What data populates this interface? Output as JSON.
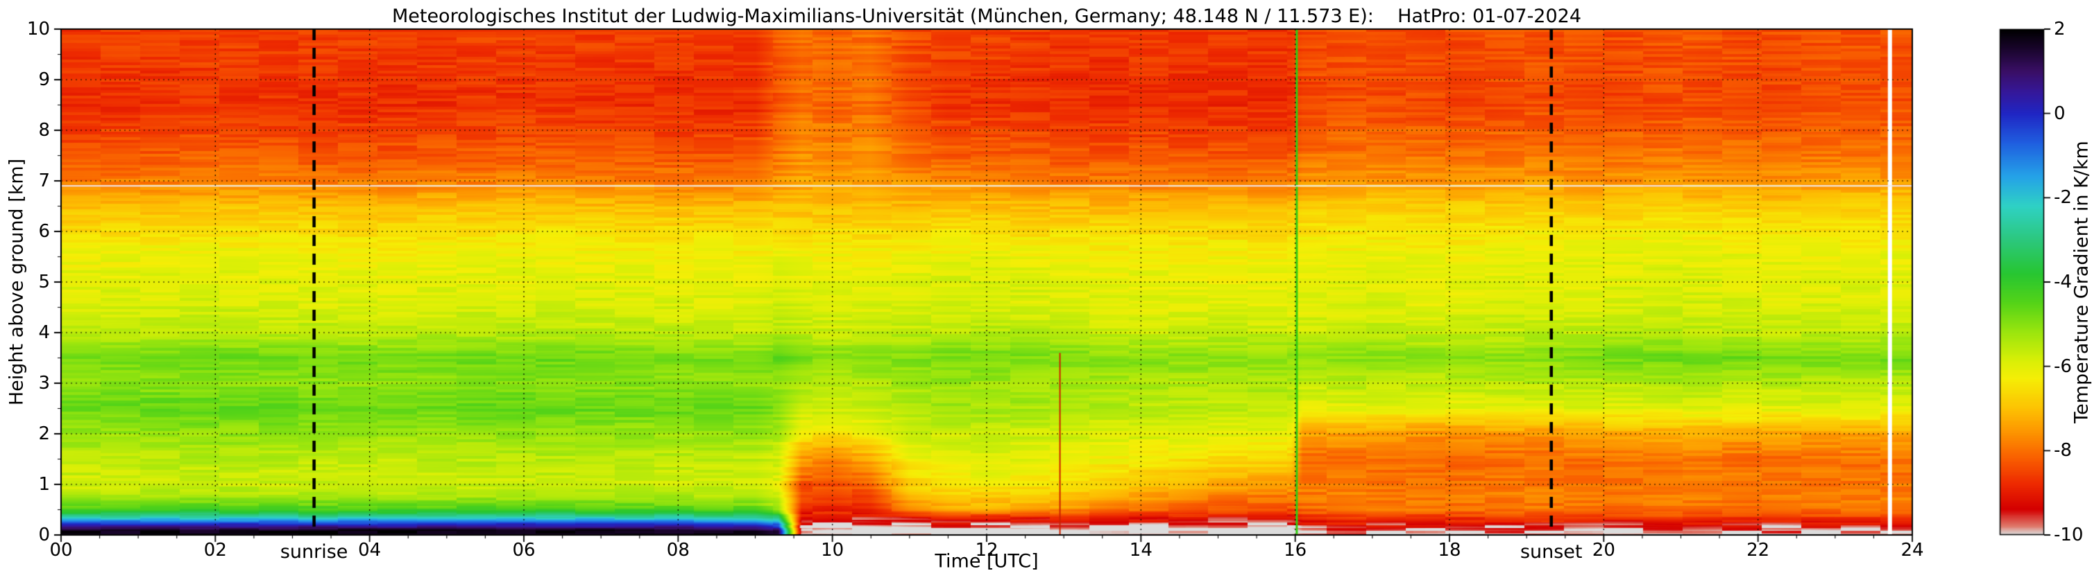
{
  "chart_data": {
    "type": "heatmap",
    "title": "Meteorologisches Institut der Ludwig-Maximilians-Universität (München, Germany; 48.148 N / 11.573 E):    HatPro: 01-07-2024",
    "xlabel": "Time [UTC]",
    "ylabel": "Height above ground [km]",
    "colorbar_label": "Temperature Gradient in K/km",
    "x_range": [
      0,
      24
    ],
    "y_range": [
      0,
      10
    ],
    "value_range": [
      -10,
      2
    ],
    "grid_on": true,
    "x_ticks": {
      "values": [
        0,
        2,
        4,
        6,
        8,
        10,
        12,
        14,
        16,
        18,
        20,
        22,
        24
      ],
      "labels": [
        "00",
        "02",
        "04",
        "06",
        "08",
        "10",
        "12",
        "14",
        "16",
        "18",
        "20",
        "22",
        "24"
      ]
    },
    "y_ticks": {
      "values": [
        0,
        1,
        2,
        3,
        4,
        5,
        6,
        7,
        8,
        9,
        10
      ],
      "labels": [
        "0",
        "1",
        "2",
        "3",
        "4",
        "5",
        "6",
        "7",
        "8",
        "9",
        "10"
      ]
    },
    "colorbar_ticks": {
      "values": [
        2,
        0,
        -2,
        -4,
        -6,
        -8,
        -10
      ],
      "labels": [
        "2",
        "0",
        "-2",
        "-4",
        "-6",
        "-8",
        "-10"
      ]
    },
    "events": {
      "sunrise": {
        "time": 3.28,
        "label": "sunrise"
      },
      "sunset": {
        "time": 19.32,
        "label": "sunset"
      }
    },
    "features": [
      {
        "name": "red-streak",
        "type": "vline",
        "time": 12.95,
        "y0": 0,
        "y1": 3.6,
        "color": "#cc2200",
        "width": 2
      },
      {
        "name": "green-streak",
        "type": "vline",
        "time": 16.02,
        "y0": 0,
        "y1": 10,
        "color": "#33cc11",
        "width": 3
      },
      {
        "name": "missing-data-gap",
        "type": "vline",
        "time": 23.71,
        "y0": 0,
        "y1": 10,
        "color": "#ffffff",
        "width": 6
      },
      {
        "name": "artifact-line",
        "type": "hline",
        "height": 6.9,
        "x0": 0,
        "x1": 24,
        "color": "#f0f0f0",
        "width": 2
      }
    ],
    "colormap_stops": [
      [
        2.0,
        "#000000"
      ],
      [
        1.5,
        "#1c0630"
      ],
      [
        1.0,
        "#3a0f66"
      ],
      [
        0.5,
        "#35189b"
      ],
      [
        0.0,
        "#2026c4"
      ],
      [
        -0.7,
        "#1f5fe0"
      ],
      [
        -1.5,
        "#25a3e8"
      ],
      [
        -2.2,
        "#2fd2c5"
      ],
      [
        -3.0,
        "#2cc87e"
      ],
      [
        -3.8,
        "#27c632"
      ],
      [
        -4.5,
        "#55d418"
      ],
      [
        -5.2,
        "#9ce60e"
      ],
      [
        -5.9,
        "#dcf006"
      ],
      [
        -6.3,
        "#f6ee06"
      ],
      [
        -7.0,
        "#fdc303"
      ],
      [
        -7.6,
        "#fd9301"
      ],
      [
        -8.2,
        "#f95e00"
      ],
      [
        -8.8,
        "#ee2a00"
      ],
      [
        -9.4,
        "#d40000"
      ],
      [
        -9.8,
        "#df7a6c"
      ],
      [
        -10.0,
        "#dcdcdc"
      ]
    ],
    "grid": {
      "times_utc": [
        0,
        2,
        4,
        6,
        8,
        9,
        9.3,
        9.6,
        10,
        10.5,
        11,
        11.5,
        12,
        13,
        14,
        15,
        15.95,
        16.1,
        17,
        18,
        19,
        20,
        21,
        22,
        23,
        24
      ],
      "heights_km": [
        0.08,
        0.22,
        0.35,
        0.5,
        0.75,
        1.0,
        1.5,
        2.0,
        2.5,
        3.0,
        3.5,
        4.0,
        4.5,
        5.0,
        5.5,
        6.0,
        6.5,
        7.0,
        7.5,
        8.5,
        10.0
      ],
      "values": [
        [
          1.8,
          1.8,
          1.9,
          1.8,
          1.8,
          1.7,
          1.2,
          -10.3,
          -10.4,
          -10.4,
          -10.3,
          -10.3,
          -10.3,
          -10.4,
          -10.3,
          -10.3,
          -10.3,
          -10.0,
          -9.9,
          -10.0,
          -9.9,
          -10.0,
          -9.9,
          -10.0,
          -9.9,
          -9.9
        ],
        [
          -0.4,
          -0.3,
          -0.4,
          -0.3,
          -0.4,
          -0.5,
          -1.2,
          -9.7,
          -9.8,
          -9.7,
          -9.6,
          -9.5,
          -9.5,
          -9.6,
          -9.6,
          -9.7,
          -9.7,
          -9.3,
          -9.2,
          -9.3,
          -9.2,
          -9.3,
          -9.2,
          -9.3,
          -9.2,
          -9.2
        ],
        [
          -2.6,
          -2.5,
          -2.6,
          -2.5,
          -2.6,
          -2.7,
          -3.2,
          -9.2,
          -9.3,
          -9.2,
          -8.9,
          -8.7,
          -8.7,
          -8.9,
          -9.0,
          -9.1,
          -9.1,
          -8.7,
          -8.5,
          -8.6,
          -8.5,
          -8.6,
          -8.5,
          -8.6,
          -8.5,
          -8.5
        ],
        [
          -4.4,
          -4.3,
          -4.4,
          -4.3,
          -4.4,
          -4.5,
          -5.2,
          -8.8,
          -8.9,
          -8.7,
          -7.8,
          -7.4,
          -7.3,
          -7.6,
          -8.0,
          -8.3,
          -8.4,
          -8.1,
          -7.9,
          -8.0,
          -7.9,
          -8.0,
          -7.9,
          -8.0,
          -7.9,
          -7.9
        ],
        [
          -5.4,
          -5.3,
          -5.4,
          -5.3,
          -5.4,
          -5.4,
          -5.8,
          -8.5,
          -8.6,
          -8.4,
          -7.2,
          -6.9,
          -6.8,
          -7.0,
          -7.4,
          -7.8,
          -7.9,
          -7.9,
          -7.8,
          -7.9,
          -7.8,
          -7.9,
          -7.8,
          -7.9,
          -7.8,
          -7.8
        ],
        [
          -5.8,
          -5.7,
          -5.8,
          -5.7,
          -5.8,
          -5.8,
          -6.0,
          -8.3,
          -8.4,
          -8.1,
          -6.7,
          -6.4,
          -6.3,
          -6.5,
          -6.9,
          -7.3,
          -7.4,
          -7.9,
          -7.9,
          -8.0,
          -7.9,
          -7.9,
          -7.9,
          -7.9,
          -7.9,
          -7.9
        ],
        [
          -5.6,
          -5.5,
          -5.6,
          -5.5,
          -5.6,
          -5.6,
          -5.8,
          -7.5,
          -7.7,
          -7.3,
          -6.2,
          -6.0,
          -5.9,
          -6.1,
          -6.3,
          -6.6,
          -6.7,
          -8.0,
          -8.0,
          -8.1,
          -8.0,
          -8.0,
          -7.9,
          -8.0,
          -8.0,
          -8.0
        ],
        [
          -5.2,
          -5.1,
          -5.2,
          -5.1,
          -5.2,
          -5.2,
          -5.4,
          -6.4,
          -6.5,
          -6.3,
          -5.8,
          -5.7,
          -5.7,
          -5.8,
          -5.9,
          -6.0,
          -6.1,
          -7.4,
          -7.5,
          -7.6,
          -7.5,
          -7.4,
          -7.3,
          -7.4,
          -7.4,
          -7.4
        ],
        [
          -4.7,
          -4.6,
          -4.7,
          -4.6,
          -4.7,
          -4.7,
          -4.9,
          -5.6,
          -5.7,
          -5.6,
          -5.4,
          -5.3,
          -5.3,
          -5.4,
          -5.5,
          -5.6,
          -5.6,
          -6.1,
          -6.0,
          -6.1,
          -6.0,
          -6.0,
          -5.9,
          -6.0,
          -6.0,
          -6.0
        ],
        [
          -5.1,
          -5.0,
          -5.1,
          -5.0,
          -5.1,
          -5.1,
          -5.2,
          -5.4,
          -5.5,
          -5.4,
          -5.3,
          -5.2,
          -5.2,
          -5.3,
          -5.4,
          -5.4,
          -5.4,
          -5.6,
          -5.5,
          -5.6,
          -5.5,
          -5.5,
          -5.4,
          -5.5,
          -5.5,
          -5.5
        ],
        [
          -4.8,
          -4.7,
          -4.8,
          -4.7,
          -4.8,
          -4.8,
          -4.6,
          -4.9,
          -5.0,
          -4.9,
          -4.9,
          -4.8,
          -4.8,
          -4.9,
          -5.0,
          -5.0,
          -5.0,
          -5.1,
          -5.0,
          -5.1,
          -5.0,
          -4.8,
          -4.7,
          -4.8,
          -4.8,
          -4.8
        ],
        [
          -5.6,
          -5.5,
          -5.6,
          -5.5,
          -5.6,
          -5.6,
          -5.5,
          -5.6,
          -5.7,
          -5.6,
          -5.6,
          -5.5,
          -5.5,
          -5.6,
          -5.7,
          -5.7,
          -5.7,
          -5.7,
          -5.6,
          -5.7,
          -5.6,
          -5.6,
          -5.5,
          -5.6,
          -5.6,
          -5.6
        ],
        [
          -5.9,
          -5.8,
          -5.9,
          -5.8,
          -5.9,
          -5.9,
          -5.8,
          -5.9,
          -6.0,
          -5.9,
          -5.9,
          -5.8,
          -5.8,
          -5.9,
          -6.0,
          -6.0,
          -6.0,
          -6.0,
          -5.9,
          -6.0,
          -5.9,
          -5.9,
          -5.8,
          -5.9,
          -5.9,
          -5.9
        ],
        [
          -6.0,
          -6.0,
          -6.1,
          -6.0,
          -6.0,
          -6.0,
          -5.9,
          -6.0,
          -6.1,
          -6.0,
          -6.0,
          -5.9,
          -5.9,
          -6.0,
          -6.1,
          -6.1,
          -6.1,
          -6.1,
          -6.0,
          -6.1,
          -6.0,
          -6.0,
          -5.9,
          -6.0,
          -6.0,
          -6.0
        ],
        [
          -6.2,
          -6.1,
          -6.2,
          -6.1,
          -6.2,
          -6.2,
          -6.1,
          -6.2,
          -6.2,
          -6.2,
          -6.2,
          -6.1,
          -6.1,
          -6.2,
          -6.2,
          -6.2,
          -6.2,
          -6.2,
          -6.1,
          -6.2,
          -6.1,
          -6.1,
          -6.0,
          -6.1,
          -6.1,
          -6.1
        ],
        [
          -6.6,
          -6.5,
          -6.6,
          -6.5,
          -6.6,
          -6.6,
          -6.5,
          -6.6,
          -6.6,
          -6.6,
          -6.6,
          -6.5,
          -6.5,
          -6.6,
          -6.6,
          -6.6,
          -6.6,
          -6.5,
          -6.4,
          -6.5,
          -6.4,
          -6.4,
          -6.3,
          -6.4,
          -6.4,
          -6.4
        ],
        [
          -7.1,
          -7.0,
          -7.1,
          -7.0,
          -7.1,
          -7.1,
          -7.0,
          -7.0,
          -7.1,
          -7.0,
          -7.1,
          -7.0,
          -7.0,
          -7.1,
          -7.1,
          -7.1,
          -7.1,
          -6.9,
          -6.8,
          -6.9,
          -6.8,
          -6.9,
          -6.8,
          -6.9,
          -6.8,
          -6.8
        ],
        [
          -7.9,
          -7.8,
          -7.9,
          -7.8,
          -7.9,
          -7.9,
          -7.6,
          -7.4,
          -7.5,
          -7.4,
          -7.7,
          -7.8,
          -7.8,
          -7.9,
          -7.9,
          -7.9,
          -7.9,
          -7.6,
          -7.5,
          -7.6,
          -7.5,
          -7.6,
          -7.5,
          -7.6,
          -7.5,
          -7.5
        ],
        [
          -8.3,
          -8.2,
          -8.3,
          -8.2,
          -8.3,
          -8.3,
          -7.9,
          -7.6,
          -7.7,
          -7.6,
          -8.0,
          -8.2,
          -8.2,
          -8.3,
          -8.3,
          -8.3,
          -8.3,
          -8.0,
          -7.9,
          -8.0,
          -7.9,
          -8.0,
          -7.9,
          -8.0,
          -7.9,
          -7.9
        ],
        [
          -8.8,
          -8.7,
          -8.8,
          -8.7,
          -8.8,
          -8.8,
          -8.3,
          -8.0,
          -8.1,
          -8.0,
          -8.5,
          -8.7,
          -8.7,
          -8.8,
          -8.8,
          -8.8,
          -8.8,
          -8.5,
          -8.4,
          -8.5,
          -8.4,
          -8.5,
          -8.4,
          -8.5,
          -8.4,
          -8.4
        ],
        [
          -8.6,
          -8.5,
          -8.6,
          -8.5,
          -8.6,
          -8.6,
          -8.2,
          -8.0,
          -8.1,
          -8.0,
          -8.4,
          -8.5,
          -8.5,
          -8.6,
          -8.6,
          -8.6,
          -8.6,
          -8.4,
          -8.3,
          -8.4,
          -8.3,
          -8.4,
          -8.3,
          -8.4,
          -8.3,
          -8.3
        ]
      ]
    }
  }
}
